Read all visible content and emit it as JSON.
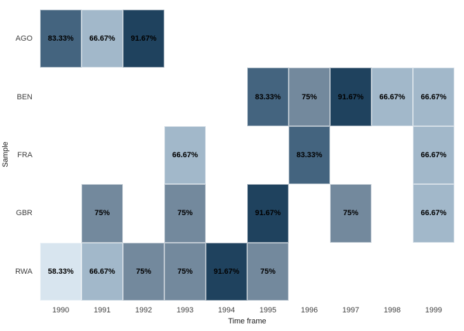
{
  "chart_data": {
    "type": "heatmap",
    "title": "",
    "xlabel": "Time frame",
    "ylabel": "Sample",
    "x_categories": [
      "1990",
      "1991",
      "1992",
      "1993",
      "1994",
      "1995",
      "1996",
      "1997",
      "1998",
      "1999"
    ],
    "y_categories": [
      "AGO",
      "BEN",
      "FRA",
      "GBR",
      "RWA"
    ],
    "cells": [
      {
        "row": "AGO",
        "col": "1990",
        "value": 83.33,
        "label": "83.33%"
      },
      {
        "row": "AGO",
        "col": "1991",
        "value": 66.67,
        "label": "66.67%"
      },
      {
        "row": "AGO",
        "col": "1992",
        "value": 91.67,
        "label": "91.67%"
      },
      {
        "row": "BEN",
        "col": "1995",
        "value": 83.33,
        "label": "83.33%"
      },
      {
        "row": "BEN",
        "col": "1996",
        "value": 75,
        "label": "75%"
      },
      {
        "row": "BEN",
        "col": "1997",
        "value": 91.67,
        "label": "91.67%"
      },
      {
        "row": "BEN",
        "col": "1998",
        "value": 66.67,
        "label": "66.67%"
      },
      {
        "row": "BEN",
        "col": "1999",
        "value": 66.67,
        "label": "66.67%"
      },
      {
        "row": "FRA",
        "col": "1993",
        "value": 66.67,
        "label": "66.67%"
      },
      {
        "row": "FRA",
        "col": "1996",
        "value": 83.33,
        "label": "83.33%"
      },
      {
        "row": "FRA",
        "col": "1999",
        "value": 66.67,
        "label": "66.67%"
      },
      {
        "row": "GBR",
        "col": "1991",
        "value": 75,
        "label": "75%"
      },
      {
        "row": "GBR",
        "col": "1993",
        "value": 75,
        "label": "75%"
      },
      {
        "row": "GBR",
        "col": "1995",
        "value": 91.67,
        "label": "91.67%"
      },
      {
        "row": "GBR",
        "col": "1997",
        "value": 75,
        "label": "75%"
      },
      {
        "row": "GBR",
        "col": "1999",
        "value": 66.67,
        "label": "66.67%"
      },
      {
        "row": "RWA",
        "col": "1990",
        "value": 58.33,
        "label": "58.33%"
      },
      {
        "row": "RWA",
        "col": "1991",
        "value": 66.67,
        "label": "66.67%"
      },
      {
        "row": "RWA",
        "col": "1992",
        "value": 75,
        "label": "75%"
      },
      {
        "row": "RWA",
        "col": "1993",
        "value": 75,
        "label": "75%"
      },
      {
        "row": "RWA",
        "col": "1994",
        "value": 91.67,
        "label": "91.67%"
      },
      {
        "row": "RWA",
        "col": "1995",
        "value": 75,
        "label": "75%"
      }
    ],
    "colors": {
      "58.33%": "#d8e5ef",
      "66.67%": "#a2b8ca",
      "75%": "#73899d",
      "83.33%": "#44647f",
      "91.67%": "#1f425e"
    },
    "value_text_color": "#000000",
    "axis_text_color": "#404040",
    "background": "#ffffff",
    "legend": "none",
    "grid": "off"
  }
}
